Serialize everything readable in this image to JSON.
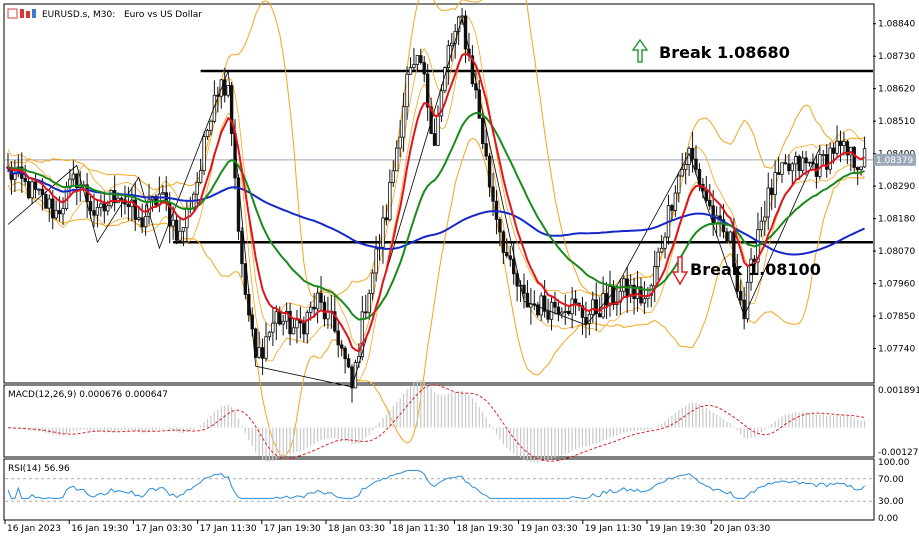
{
  "header": {
    "symbol": "EURUSD.s, M30:",
    "description": "Euro vs US Dollar"
  },
  "colors": {
    "bull_candle": "#111111",
    "bear_candle": "#111111",
    "ma_fast": "#e0141b",
    "ma_mid": "#1a8a1a",
    "ma_slow": "#1428c8",
    "bollinger": "#f4a51d",
    "macd_hist": "#c8c8c8",
    "macd_signal": "#d9232a",
    "rsi_line": "#2b8fd6",
    "level_line": "#000000",
    "arrow_up": "#2e9a3a",
    "arrow_down": "#d9232a"
  },
  "chart_data": [
    {
      "type": "candlestick",
      "title": "EURUSD.s, M30: Euro vs US Dollar",
      "price_ticks": [
        "1.08840",
        "1.08730",
        "1.08620",
        "1.08510",
        "1.08400",
        "1.08290",
        "1.08180",
        "1.08070",
        "1.07960",
        "1.07850",
        "1.07740"
      ],
      "ylim": [
        1.0763,
        1.089
      ],
      "current_price": "1.08379",
      "time_labels": [
        "16 Jan 2023",
        "16 Jan 19:30",
        "17 Jan 03:30",
        "17 Jan 11:30",
        "17 Jan 19:30",
        "18 Jan 03:30",
        "18 Jan 11:30",
        "18 Jan 19:30",
        "19 Jan 03:30",
        "19 Jan 11:30",
        "19 Jan 19:30",
        "20 Jan 03:30"
      ],
      "price_path_anchors": [
        [
          0,
          1.0834
        ],
        [
          8,
          1.0826
        ],
        [
          14,
          1.082
        ],
        [
          20,
          1.0832
        ],
        [
          26,
          1.0818
        ],
        [
          32,
          1.0828
        ],
        [
          38,
          1.0816
        ],
        [
          44,
          1.0826
        ],
        [
          50,
          1.0812
        ],
        [
          56,
          1.0835
        ],
        [
          60,
          1.0862
        ],
        [
          64,
          1.0865
        ],
        [
          68,
          1.08
        ],
        [
          72,
          1.077
        ],
        [
          78,
          1.0785
        ],
        [
          84,
          1.078
        ],
        [
          90,
          1.079
        ],
        [
          96,
          1.0778
        ],
        [
          100,
          1.076
        ],
        [
          104,
          1.079
        ],
        [
          110,
          1.082
        ],
        [
          116,
          1.0865
        ],
        [
          120,
          1.087
        ],
        [
          124,
          1.0845
        ],
        [
          128,
          1.0875
        ],
        [
          132,
          1.0885
        ],
        [
          136,
          1.086
        ],
        [
          140,
          1.083
        ],
        [
          146,
          1.08
        ],
        [
          150,
          1.079
        ],
        [
          156,
          1.0788
        ],
        [
          162,
          1.079
        ],
        [
          168,
          1.0785
        ],
        [
          174,
          1.079
        ],
        [
          180,
          1.0794
        ],
        [
          186,
          1.079
        ],
        [
          190,
          1.081
        ],
        [
          194,
          1.083
        ],
        [
          198,
          1.084
        ],
        [
          202,
          1.0828
        ],
        [
          206,
          1.0815
        ],
        [
          210,
          1.081
        ],
        [
          214,
          1.0785
        ],
        [
          218,
          1.0815
        ],
        [
          222,
          1.0828
        ],
        [
          226,
          1.0834
        ],
        [
          230,
          1.0836
        ],
        [
          236,
          1.0836
        ],
        [
          240,
          1.0842
        ],
        [
          246,
          1.0838
        ]
      ],
      "levels": [
        {
          "label": "Break 1.08680",
          "value": 1.0868,
          "direction": "up"
        },
        {
          "label": "Break 1.08100",
          "value": 1.081,
          "direction": "down"
        }
      ]
    },
    {
      "type": "histogram",
      "title": "MACD(12,26,9) 0.000676 0.000647",
      "ticks": [
        "0.001891",
        "-0.001276"
      ],
      "ylim": [
        -0.001276,
        0.001891
      ]
    },
    {
      "type": "line",
      "title": "RSI(14) 56.96",
      "ticks": [
        "100.00",
        "70.00",
        "30.00",
        "0.00"
      ],
      "ylim": [
        0,
        100
      ],
      "levels": [
        70,
        30
      ]
    }
  ]
}
